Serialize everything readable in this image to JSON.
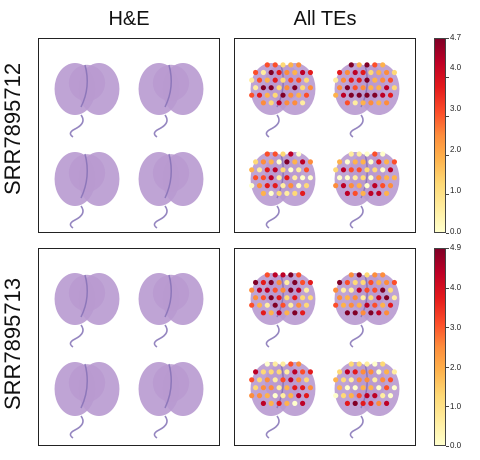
{
  "columns": {
    "he_title": "H&E",
    "te_title": "All TEs"
  },
  "rows": [
    {
      "label": "SRR7895712",
      "colorbar": {
        "max_label": "4.7",
        "tick_labels": [
          "4.0",
          "3.0",
          "2.0",
          "1.0",
          "0.0"
        ],
        "max": 4.7
      }
    },
    {
      "label": "SRR7895713",
      "colorbar": {
        "max_label": "4.9",
        "tick_labels": [
          "4.0",
          "3.0",
          "2.0",
          "1.0",
          "0.0"
        ],
        "max": 4.9
      }
    }
  ],
  "colors": {
    "tissue": "#b89ad0",
    "tissue_dark": "#7a68b0",
    "background": "#ffffff",
    "colormap": [
      "#ffffcc",
      "#ffeda0",
      "#fed976",
      "#feb24c",
      "#fd8d3c",
      "#fc4e2a",
      "#e31a1c",
      "#bd0026",
      "#800026"
    ]
  }
}
